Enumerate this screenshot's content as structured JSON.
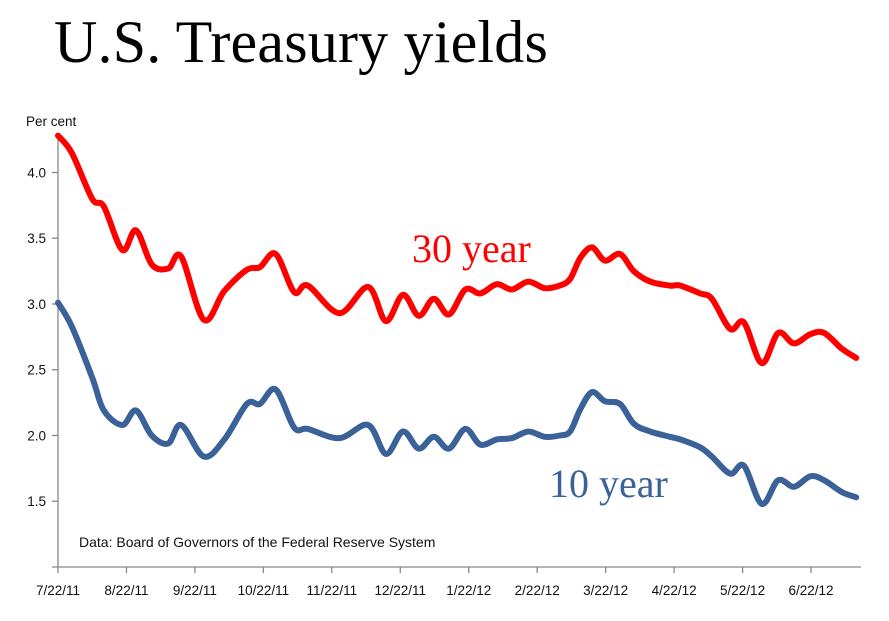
{
  "chart_data": {
    "type": "line",
    "title": "U.S. Treasury yields",
    "ylabel": "Per cent",
    "xlabel": "",
    "ylim": [
      1.0,
      4.3
    ],
    "yticks": [
      1.5,
      2.0,
      2.5,
      3.0,
      3.5,
      4.0
    ],
    "ytick_labels": [
      "1.5",
      "2.0",
      "2.5",
      "3.0",
      "3.5",
      "4.0"
    ],
    "x_unit": "months since 7/22/11",
    "xlim": [
      0,
      11.73
    ],
    "xticks": [
      0,
      1,
      2,
      3,
      4,
      5,
      6,
      7,
      8,
      9,
      10,
      11
    ],
    "xtick_labels": [
      "7/22/11",
      "8/22/11",
      "9/22/11",
      "10/22/11",
      "11/22/11",
      "12/22/11",
      "1/22/12",
      "2/22/12",
      "3/22/12",
      "4/22/12",
      "5/22/12",
      "6/22/12"
    ],
    "grid": false,
    "legend": "inline labels",
    "annotation": "Data: Board of Governors of the Federal Reserve System",
    "x": [
      0,
      0.2,
      0.5,
      0.67,
      0.94,
      1.14,
      1.37,
      1.61,
      1.8,
      2.13,
      2.43,
      2.76,
      2.95,
      3.18,
      3.45,
      3.65,
      4.11,
      4.53,
      4.79,
      5.04,
      5.27,
      5.49,
      5.71,
      5.95,
      6.17,
      6.41,
      6.63,
      6.87,
      7.11,
      7.33,
      7.48,
      7.63,
      7.8,
      7.99,
      8.21,
      8.41,
      8.65,
      8.94,
      9.09,
      9.38,
      9.55,
      9.82,
      10.02,
      10.28,
      10.52,
      10.75,
      10.99,
      11.19,
      11.45,
      11.66
    ],
    "series": [
      {
        "name": "30 year",
        "color": "#ff0000",
        "values": [
          4.28,
          4.15,
          3.8,
          3.74,
          3.41,
          3.56,
          3.3,
          3.27,
          3.36,
          2.88,
          3.1,
          3.26,
          3.28,
          3.38,
          3.09,
          3.14,
          2.93,
          3.13,
          2.87,
          3.07,
          2.91,
          3.04,
          2.92,
          3.11,
          3.08,
          3.15,
          3.11,
          3.17,
          3.12,
          3.14,
          3.19,
          3.35,
          3.43,
          3.33,
          3.38,
          3.25,
          3.17,
          3.14,
          3.14,
          3.08,
          3.04,
          2.81,
          2.86,
          2.55,
          2.78,
          2.7,
          2.77,
          2.78,
          2.66,
          2.59
        ]
      },
      {
        "name": "10 year",
        "color": "#3a6298",
        "values": [
          3.01,
          2.83,
          2.44,
          2.19,
          2.08,
          2.19,
          2.0,
          1.94,
          2.08,
          1.84,
          1.97,
          2.24,
          2.24,
          2.35,
          2.06,
          2.05,
          1.98,
          2.08,
          1.86,
          2.03,
          1.9,
          1.99,
          1.9,
          2.05,
          1.93,
          1.97,
          1.98,
          2.03,
          1.99,
          2.0,
          2.03,
          2.2,
          2.33,
          2.26,
          2.24,
          2.09,
          2.03,
          1.99,
          1.97,
          1.91,
          1.84,
          1.71,
          1.77,
          1.48,
          1.66,
          1.61,
          1.69,
          1.66,
          1.57,
          1.53
        ]
      }
    ]
  }
}
